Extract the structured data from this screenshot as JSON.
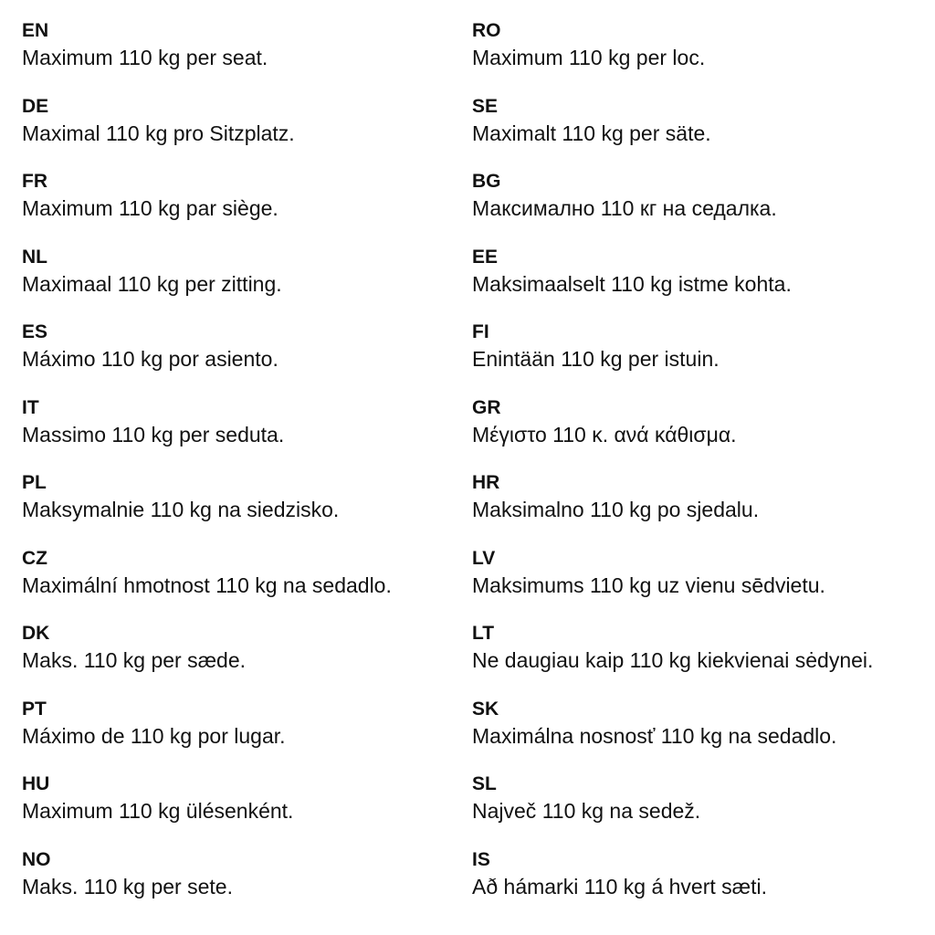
{
  "columns": [
    {
      "entries": [
        {
          "code": "EN",
          "text": "Maximum 110 kg per seat."
        },
        {
          "code": "DE",
          "text": "Maximal 110 kg pro Sitzplatz."
        },
        {
          "code": "FR",
          "text": "Maximum 110 kg par siège."
        },
        {
          "code": "NL",
          "text": "Maximaal 110 kg per zitting."
        },
        {
          "code": "ES",
          "text": "Máximo 110 kg por asiento."
        },
        {
          "code": "IT",
          "text": "Massimo 110 kg per seduta."
        },
        {
          "code": "PL",
          "text": "Maksymalnie 110 kg na siedzisko."
        },
        {
          "code": "CZ",
          "text": "Maximální hmotnost 110 kg na sedadlo."
        },
        {
          "code": "DK",
          "text": "Maks. 110 kg per sæde."
        },
        {
          "code": "PT",
          "text": "Máximo de 110 kg por lugar."
        },
        {
          "code": "HU",
          "text": "Maximum 110 kg ülésenként."
        },
        {
          "code": "NO",
          "text": "Maks. 110 kg per sete."
        }
      ]
    },
    {
      "entries": [
        {
          "code": "RO",
          "text": "Maximum 110 kg per loc."
        },
        {
          "code": "SE",
          "text": "Maximalt 110 kg per säte."
        },
        {
          "code": "BG",
          "text": "Максимално 110 кг на седалка."
        },
        {
          "code": "EE",
          "text": "Maksimaalselt 110 kg istme kohta."
        },
        {
          "code": "FI",
          "text": "Enintään 110 kg per istuin."
        },
        {
          "code": "GR",
          "text": "Μέγιστο 110 κ. ανά κάθισμα."
        },
        {
          "code": "HR",
          "text": "Maksimalno 110 kg po sjedalu."
        },
        {
          "code": "LV",
          "text": "Maksimums 110 kg uz vienu sēdvietu."
        },
        {
          "code": "LT",
          "text": "Ne daugiau kaip 110 kg kiekvienai sėdynei."
        },
        {
          "code": "SK",
          "text": "Maximálna nosnosť 110 kg na sedadlo."
        },
        {
          "code": "SL",
          "text": "Največ 110 kg na sedež."
        },
        {
          "code": "IS",
          "text": "Að hámarki 110 kg á hvert sæti."
        }
      ]
    }
  ]
}
